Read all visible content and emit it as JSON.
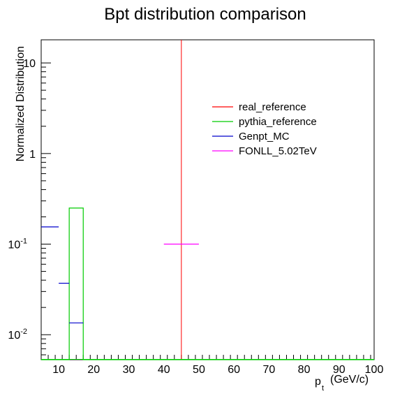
{
  "chart_data": {
    "type": "line",
    "title": "Bpt distribution comparison",
    "ylabel": "Normalized Distribution",
    "xlabel_main": "p",
    "xlabel_sub": "t",
    "xlabel_unit": "(GeV/c)",
    "xlim": [
      5,
      100
    ],
    "ylim": [
      0.0053,
      18
    ],
    "yscale": "log",
    "grid": false,
    "legend_position": "top-right",
    "x_ticks": [
      "10",
      "20",
      "30",
      "40",
      "50",
      "60",
      "70",
      "80",
      "90",
      "100"
    ],
    "y_ticks": [
      {
        "base": "10",
        "exp": "-2",
        "value": 0.01
      },
      {
        "base": "10",
        "exp": "-1",
        "value": 0.1
      },
      {
        "base": "1",
        "exp": "",
        "value": 1
      },
      {
        "base": "10",
        "exp": "",
        "value": 10
      }
    ],
    "series": [
      {
        "name": "real_reference",
        "color": "#ff0000",
        "style": "vertical-line",
        "x": 45
      },
      {
        "name": "pythia_reference",
        "color": "#00cc00",
        "style": "histogram",
        "bins": [
          {
            "x0": 13,
            "x1": 17,
            "y": 0.25
          }
        ]
      },
      {
        "name": "Genpt_MC",
        "color": "#0000cc",
        "style": "points",
        "points": [
          {
            "x0": 5,
            "x1": 10,
            "y": 0.155
          },
          {
            "x0": 10,
            "x1": 13,
            "y": 0.037
          },
          {
            "x0": 13,
            "x1": 17,
            "y": 0.0135
          }
        ]
      },
      {
        "name": "FONLL_5.02TeV",
        "color": "#ff00ff",
        "style": "points",
        "points": [
          {
            "x0": 40,
            "x1": 50,
            "y": 0.1
          }
        ]
      }
    ]
  }
}
